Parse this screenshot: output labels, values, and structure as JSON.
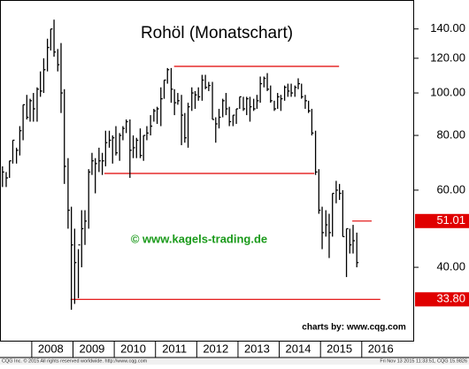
{
  "chart_data": {
    "type": "ohlc",
    "title": "Rohöl (Monatschart)",
    "watermark": "© www.kagels-trading.de",
    "credit": "charts by: www.cqg.com",
    "footer_left": "CQG Inc. © 2015 All rights reserved worldwide. http://www.cqg.com",
    "footer_right": "Fri Nov 13 2015 11:33:51, CQG 15.9826",
    "color": "#000000",
    "log_scale": true,
    "ylim": [
      27.2,
      163
    ],
    "yticks": [
      {
        "value": 40,
        "label": "40.00"
      },
      {
        "value": 60,
        "label": "60.00"
      },
      {
        "value": 80,
        "label": "80.00"
      },
      {
        "value": 100,
        "label": "100.00"
      },
      {
        "value": 120,
        "label": "120.00"
      },
      {
        "value": 140,
        "label": "140.00"
      }
    ],
    "xlim": [
      2007.23,
      2017.27
    ],
    "xticks": [
      2008,
      2009,
      2010,
      2011,
      2012,
      2013,
      2014,
      2015,
      2016
    ],
    "x": [
      2007.29,
      2007.38,
      2007.46,
      2007.54,
      2007.63,
      2007.71,
      2007.79,
      2007.88,
      2007.96,
      2008.04,
      2008.13,
      2008.21,
      2008.29,
      2008.38,
      2008.46,
      2008.54,
      2008.63,
      2008.71,
      2008.79,
      2008.88,
      2008.96,
      2009.04,
      2009.13,
      2009.21,
      2009.29,
      2009.38,
      2009.46,
      2009.54,
      2009.63,
      2009.71,
      2009.79,
      2009.88,
      2009.96,
      2010.04,
      2010.13,
      2010.21,
      2010.29,
      2010.38,
      2010.46,
      2010.54,
      2010.63,
      2010.71,
      2010.79,
      2010.88,
      2010.96,
      2011.04,
      2011.13,
      2011.21,
      2011.29,
      2011.38,
      2011.46,
      2011.54,
      2011.63,
      2011.71,
      2011.79,
      2011.88,
      2011.96,
      2012.04,
      2012.13,
      2012.21,
      2012.29,
      2012.38,
      2012.46,
      2012.54,
      2012.63,
      2012.71,
      2012.79,
      2012.88,
      2012.96,
      2013.04,
      2013.13,
      2013.21,
      2013.29,
      2013.38,
      2013.46,
      2013.54,
      2013.63,
      2013.71,
      2013.79,
      2013.88,
      2013.96,
      2014.04,
      2014.13,
      2014.21,
      2014.29,
      2014.38,
      2014.46,
      2014.54,
      2014.63,
      2014.71,
      2014.79,
      2014.88,
      2014.96,
      2015.04,
      2015.13,
      2015.21,
      2015.29,
      2015.38,
      2015.46,
      2015.54,
      2015.63,
      2015.71,
      2015.79,
      2015.88
    ],
    "high": [
      68,
      66,
      70,
      78,
      75,
      84,
      94,
      99,
      97,
      100,
      103,
      112,
      120,
      133,
      140,
      147,
      126,
      130,
      102,
      71,
      55,
      49,
      44,
      54,
      54,
      67,
      73,
      71,
      75,
      73,
      82,
      82,
      80,
      84,
      81,
      84,
      87,
      87,
      80,
      79,
      83,
      80,
      84,
      89,
      92,
      93,
      103,
      107,
      114,
      114,
      102,
      100,
      99,
      90,
      95,
      103,
      101,
      103,
      110,
      110,
      106,
      106,
      88,
      92,
      97,
      100,
      93,
      89,
      92,
      98,
      98,
      98,
      98,
      97,
      99,
      109,
      109,
      111,
      104,
      96,
      100,
      99,
      104,
      105,
      105,
      104,
      108,
      105,
      99,
      96,
      92,
      82,
      67,
      55,
      54,
      53,
      59,
      63,
      62,
      60,
      49,
      49,
      50,
      48
    ],
    "low": [
      61,
      61,
      64,
      69,
      69,
      72,
      78,
      87,
      86,
      86,
      86,
      98,
      100,
      112,
      125,
      121,
      112,
      90,
      62,
      49,
      32,
      33,
      34,
      40,
      45,
      49,
      65,
      59,
      66,
      65,
      68,
      75,
      69,
      72,
      70,
      78,
      81,
      64,
      71,
      71,
      71,
      70,
      78,
      80,
      86,
      85,
      84,
      97,
      105,
      95,
      89,
      94,
      76,
      77,
      75,
      91,
      92,
      96,
      96,
      102,
      101,
      87,
      77,
      83,
      88,
      89,
      84,
      84,
      85,
      92,
      91,
      89,
      86,
      91,
      92,
      95,
      103,
      101,
      95,
      91,
      92,
      91,
      96,
      98,
      98,
      98,
      102,
      97,
      92,
      90,
      80,
      65,
      53,
      44,
      47,
      42,
      47,
      56,
      57,
      47,
      38,
      43,
      43,
      40
    ],
    "close": [
      66,
      64,
      70,
      78,
      74,
      82,
      94,
      88,
      96,
      92,
      102,
      101,
      113,
      127,
      140,
      124,
      116,
      100,
      68,
      54,
      45,
      41,
      45,
      49,
      51,
      66,
      70,
      69,
      70,
      70,
      77,
      78,
      79,
      73,
      80,
      83,
      86,
      74,
      75,
      78,
      72,
      80,
      81,
      84,
      91,
      92,
      97,
      107,
      113,
      102,
      95,
      96,
      89,
      79,
      93,
      100,
      99,
      98,
      107,
      103,
      104,
      87,
      85,
      88,
      96,
      92,
      86,
      89,
      92,
      98,
      92,
      97,
      93,
      92,
      96,
      105,
      108,
      102,
      96,
      92,
      98,
      97,
      103,
      101,
      100,
      103,
      105,
      98,
      96,
      91,
      81,
      66,
      54,
      48,
      50,
      48,
      59,
      60,
      59,
      47,
      49,
      45,
      46,
      41
    ],
    "levels": [
      {
        "value": 115,
        "x": [
          2011.45,
          2015.45
        ],
        "color": "#e00000"
      },
      {
        "value": 65.5,
        "x": [
          2009.76,
          2014.85
        ],
        "color": "#e00000"
      },
      {
        "value": 51.01,
        "x": [
          2015.77,
          2016.24
        ],
        "color": "#e00000",
        "label": "51.01"
      },
      {
        "value": 33.8,
        "x": [
          2008.94,
          2016.45
        ],
        "color": "#e00000",
        "label": "33.80"
      }
    ]
  }
}
